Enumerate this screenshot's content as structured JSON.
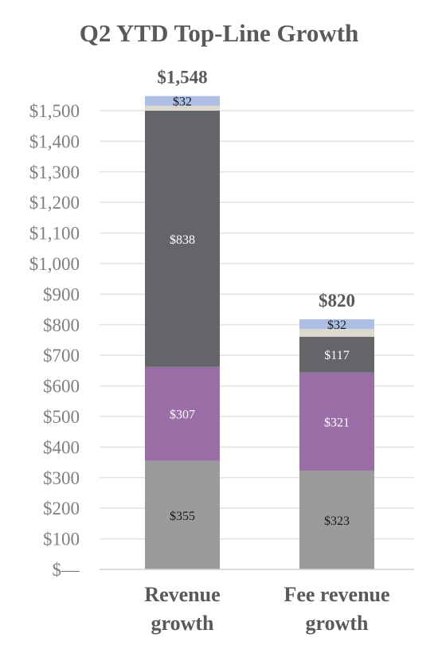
{
  "chart_data": {
    "type": "bar",
    "stacked": true,
    "title": "Q2 YTD Top-Line Growth",
    "categories": [
      "Revenue growth",
      "Fee revenue growth"
    ],
    "category_lines": [
      [
        "Revenue",
        "growth"
      ],
      [
        "Fee revenue",
        "growth"
      ]
    ],
    "totals": [
      "$1,548",
      "$820"
    ],
    "ylim": [
      0,
      1500
    ],
    "yticks": [
      0,
      100,
      200,
      300,
      400,
      500,
      600,
      700,
      800,
      900,
      1000,
      1100,
      1200,
      1300,
      1400,
      1500
    ],
    "ytick_labels": [
      "$—",
      "$100",
      "$200",
      "$300",
      "$400",
      "$500",
      "$600",
      "$700",
      "$800",
      "$900",
      "$1,000",
      "$1,100",
      "$1,200",
      "$1,300",
      "$1,400",
      "$1,500"
    ],
    "grid": true,
    "series": [
      {
        "values": [
          355,
          323
        ],
        "labels": [
          "$355",
          "$323"
        ],
        "color": "#9b9b9b",
        "label_color": "#1a1a1a"
      },
      {
        "values": [
          307,
          321
        ],
        "labels": [
          "$307",
          "$321"
        ],
        "color": "#9a6ea6",
        "label_color": "#ffffff"
      },
      {
        "values": [
          838,
          117
        ],
        "labels": [
          "$838",
          "$117"
        ],
        "color": "#646568",
        "label_color": "#ffffff"
      },
      {
        "values": [
          16,
          25
        ],
        "labels": [
          "",
          ""
        ],
        "color": "#ddd9cf",
        "label_color": "#1a1a1a"
      },
      {
        "values": [
          32,
          32
        ],
        "labels": [
          "$32",
          "$32"
        ],
        "color": "#aebfe6",
        "label_color": "#1a1a1a"
      }
    ]
  }
}
